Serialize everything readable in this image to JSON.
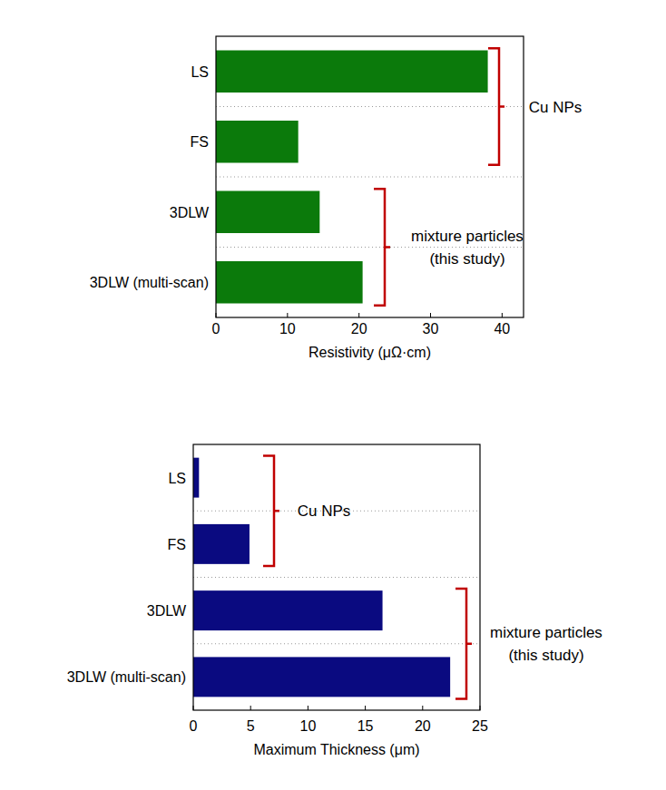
{
  "chart_data": [
    {
      "type": "bar",
      "orientation": "horizontal",
      "categories": [
        "LS",
        "FS",
        "3DLW",
        "3DLW (multi-scan)"
      ],
      "values": [
        38,
        11.5,
        14.5,
        20.5
      ],
      "color": "#0b7a0b",
      "xlabel": "Resistivity (μΩ·cm)",
      "xlim": [
        0,
        43
      ],
      "xticks": [
        0,
        10,
        20,
        30,
        40
      ],
      "grid": true,
      "annotations": [
        {
          "lines": [
            "Cu NPs"
          ]
        },
        {
          "lines": [
            "mixture particles",
            "(this study)"
          ]
        }
      ]
    },
    {
      "type": "bar",
      "orientation": "horizontal",
      "categories": [
        "LS",
        "FS",
        "3DLW",
        "3DLW (multi-scan)"
      ],
      "values": [
        0.5,
        4.9,
        16.5,
        22.4
      ],
      "color": "#0a0a80",
      "xlabel": "Maximum Thickness (μm)",
      "xlim": [
        0,
        25
      ],
      "xticks": [
        0,
        5,
        10,
        15,
        20,
        25
      ],
      "grid": true,
      "annotations": [
        {
          "lines": [
            "Cu NPs"
          ]
        },
        {
          "lines": [
            "mixture particles",
            "(this study)"
          ]
        }
      ]
    }
  ]
}
